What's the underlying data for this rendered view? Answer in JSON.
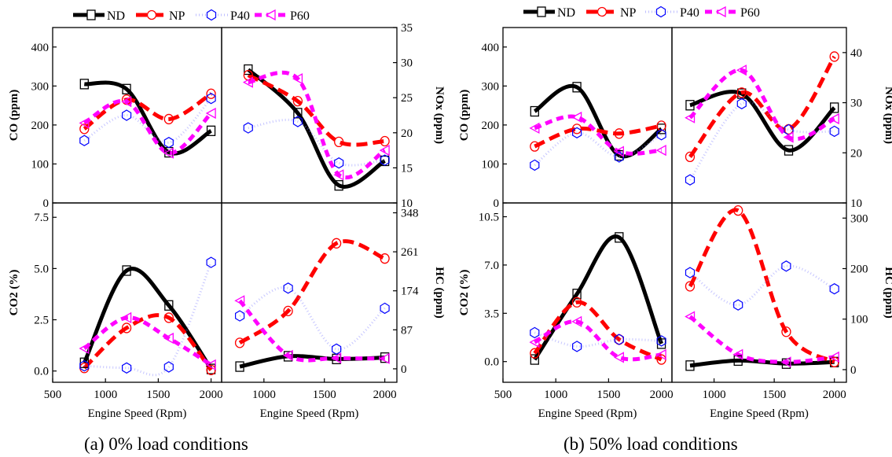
{
  "legend": [
    {
      "name": "ND",
      "color": "#000000",
      "marker": "square",
      "line": "solid"
    },
    {
      "name": "NP",
      "color": "#ff0000",
      "marker": "circle",
      "line": "dash"
    },
    {
      "name": "P40",
      "color": "#0000ff",
      "marker": "hexagon",
      "line": "dot"
    },
    {
      "name": "P60",
      "color": "#ff00ff",
      "marker": "triangle-left",
      "line": "dash"
    }
  ],
  "captions": [
    "(a) 0% load conditions",
    "(b) 50% load conditions"
  ],
  "chart_data": [
    {
      "type": "scatter",
      "group": "(a) 0% load conditions",
      "ylabel": "CO (ppm)",
      "y_axis_side": "left",
      "xlim": [
        500,
        2100
      ],
      "ylim": [
        0,
        450
      ],
      "xticks": [],
      "yticks": [
        0,
        100,
        200,
        300,
        400
      ],
      "series": [
        {
          "name": "ND",
          "x": [
            800,
            1200,
            1600,
            2000
          ],
          "y": [
            305,
            292,
            130,
            185
          ]
        },
        {
          "name": "NP",
          "x": [
            800,
            1200,
            1600,
            2000
          ],
          "y": [
            190,
            265,
            215,
            280
          ]
        },
        {
          "name": "P40",
          "x": [
            800,
            1200,
            1600,
            2000
          ],
          "y": [
            160,
            225,
            155,
            268
          ]
        },
        {
          "name": "P60",
          "x": [
            800,
            1200,
            1600,
            2000
          ],
          "y": [
            205,
            260,
            128,
            230
          ]
        }
      ]
    },
    {
      "type": "scatter",
      "group": "(a) 0% load conditions",
      "ylabel": "NOx (ppm)",
      "y_axis_side": "right",
      "xlim": [
        650,
        2100
      ],
      "ylim": [
        10,
        35
      ],
      "xticks": [],
      "yticks": [
        10,
        15,
        20,
        25,
        30,
        35
      ],
      "series": [
        {
          "name": "ND",
          "x": [
            870,
            1280,
            1620,
            2000
          ],
          "y": [
            29,
            22.8,
            12.5,
            16
          ]
        },
        {
          "name": "NP",
          "x": [
            870,
            1280,
            1620,
            2000
          ],
          "y": [
            28.2,
            24.5,
            18.7,
            18.8
          ]
        },
        {
          "name": "P40",
          "x": [
            870,
            1280,
            1620,
            2000
          ],
          "y": [
            20.7,
            21.6,
            15.7,
            16.1
          ]
        },
        {
          "name": "P60",
          "x": [
            870,
            1280,
            1620,
            2000
          ],
          "y": [
            27.2,
            27.7,
            14,
            17.5
          ]
        }
      ]
    },
    {
      "type": "scatter",
      "group": "(a) 0% load conditions",
      "ylabel": "CO2 (%)",
      "y_axis_side": "left",
      "xlim": [
        500,
        2100
      ],
      "ylim": [
        -0.55,
        8.2
      ],
      "xticks": [
        500,
        1000,
        1500,
        2000
      ],
      "yticks": [
        0.0,
        2.5,
        5.0,
        7.5
      ],
      "xlabel": "Engine Speed (Rpm)",
      "series": [
        {
          "name": "ND",
          "x": [
            800,
            1200,
            1600,
            2000
          ],
          "y": [
            0.4,
            4.9,
            3.2,
            0.1
          ]
        },
        {
          "name": "NP",
          "x": [
            800,
            1200,
            1600,
            2000
          ],
          "y": [
            0.15,
            2.1,
            2.6,
            0.05
          ]
        },
        {
          "name": "P40",
          "x": [
            800,
            1200,
            1600,
            2000
          ],
          "y": [
            0.25,
            0.15,
            0.2,
            5.3
          ]
        },
        {
          "name": "P60",
          "x": [
            800,
            1200,
            1600,
            2000
          ],
          "y": [
            1.1,
            2.6,
            1.6,
            0.3
          ]
        }
      ]
    },
    {
      "type": "scatter",
      "group": "(a) 0% load conditions",
      "ylabel": "HC (ppm)",
      "y_axis_side": "right",
      "xlim": [
        650,
        2100
      ],
      "ylim": [
        -30,
        370
      ],
      "xticks": [
        1000,
        1500,
        2000
      ],
      "yticks": [
        0,
        87,
        174,
        261,
        348
      ],
      "xlabel": "Engine Speed (Rpm)",
      "series": [
        {
          "name": "ND",
          "x": [
            800,
            1200,
            1600,
            2000
          ],
          "y": [
            5,
            28,
            22,
            25
          ]
        },
        {
          "name": "NP",
          "x": [
            800,
            1200,
            1600,
            2000
          ],
          "y": [
            58,
            129,
            280,
            246
          ]
        },
        {
          "name": "P40",
          "x": [
            800,
            1200,
            1600,
            2000
          ],
          "y": [
            118,
            180,
            44,
            135
          ]
        },
        {
          "name": "P60",
          "x": [
            800,
            1200,
            1600,
            2000
          ],
          "y": [
            152,
            30,
            24,
            23
          ]
        }
      ]
    },
    {
      "type": "scatter",
      "group": "(b) 50% load conditions",
      "ylabel": "CO (ppm)",
      "y_axis_side": "left",
      "xlim": [
        500,
        2100
      ],
      "ylim": [
        0,
        450
      ],
      "xticks": [],
      "yticks": [
        0,
        100,
        200,
        300,
        400
      ],
      "series": [
        {
          "name": "ND",
          "x": [
            800,
            1200,
            1600,
            2000
          ],
          "y": [
            235,
            297,
            122,
            190
          ]
        },
        {
          "name": "NP",
          "x": [
            800,
            1200,
            1600,
            2000
          ],
          "y": [
            145,
            190,
            178,
            198
          ]
        },
        {
          "name": "P40",
          "x": [
            800,
            1200,
            1600,
            2000
          ],
          "y": [
            97,
            180,
            118,
            175
          ]
        },
        {
          "name": "P60",
          "x": [
            800,
            1200,
            1600,
            2000
          ],
          "y": [
            192,
            220,
            132,
            135
          ]
        }
      ]
    },
    {
      "type": "scatter",
      "group": "(b) 50% load conditions",
      "ylabel": "NOx (ppm)",
      "y_axis_side": "right",
      "xlim": [
        650,
        2100
      ],
      "ylim": [
        10,
        45
      ],
      "xticks": [],
      "yticks": [
        10,
        20,
        30,
        40
      ],
      "series": [
        {
          "name": "ND",
          "x": [
            800,
            1230,
            1620,
            2000
          ],
          "y": [
            29.5,
            31.8,
            20.5,
            29
          ]
        },
        {
          "name": "NP",
          "x": [
            800,
            1230,
            1620,
            2000
          ],
          "y": [
            19.2,
            32,
            24.7,
            39.2
          ]
        },
        {
          "name": "P40",
          "x": [
            800,
            1230,
            1620,
            2000
          ],
          "y": [
            14.6,
            29.8,
            24.6,
            24.3
          ]
        },
        {
          "name": "P60",
          "x": [
            800,
            1230,
            1620,
            2000
          ],
          "y": [
            27,
            36.5,
            23.1,
            26.8
          ]
        }
      ]
    },
    {
      "type": "scatter",
      "group": "(b) 50% load conditions",
      "ylabel": "CO2 (%)",
      "y_axis_side": "left",
      "xlim": [
        500,
        2100
      ],
      "ylim": [
        -1.5,
        11.5
      ],
      "xticks": [
        500,
        1000,
        1500,
        2000
      ],
      "yticks": [
        0.0,
        3.5,
        7.0,
        10.5
      ],
      "xlabel": "Engine Speed (Rpm)",
      "series": [
        {
          "name": "ND",
          "x": [
            800,
            1200,
            1600,
            2000
          ],
          "y": [
            0.15,
            4.9,
            9.0,
            1.3
          ]
        },
        {
          "name": "NP",
          "x": [
            800,
            1200,
            1600,
            2000
          ],
          "y": [
            0.6,
            4.3,
            1.6,
            0.15
          ]
        },
        {
          "name": "P40",
          "x": [
            800,
            1200,
            1600,
            2000
          ],
          "y": [
            2.1,
            1.1,
            1.6,
            1.5
          ]
        },
        {
          "name": "P60",
          "x": [
            800,
            1200,
            1600,
            2000
          ],
          "y": [
            1.4,
            2.9,
            0.3,
            0.5
          ]
        }
      ]
    },
    {
      "type": "scatter",
      "group": "(b) 50% load conditions",
      "ylabel": "HC (ppm)",
      "y_axis_side": "right",
      "xlim": [
        650,
        2100
      ],
      "ylim": [
        -25,
        330
      ],
      "xticks": [
        1000,
        1500,
        2000
      ],
      "yticks": [
        0,
        100,
        200,
        300
      ],
      "xlabel": "Engine Speed (Rpm)",
      "series": [
        {
          "name": "ND",
          "x": [
            800,
            1200,
            1600,
            2000
          ],
          "y": [
            8,
            18,
            12,
            15
          ]
        },
        {
          "name": "NP",
          "x": [
            800,
            1200,
            1600,
            2000
          ],
          "y": [
            165,
            315,
            75,
            15
          ]
        },
        {
          "name": "P40",
          "x": [
            800,
            1200,
            1600,
            2000
          ],
          "y": [
            192,
            128,
            205,
            160
          ]
        },
        {
          "name": "P60",
          "x": [
            800,
            1200,
            1600,
            2000
          ],
          "y": [
            105,
            30,
            15,
            25
          ]
        }
      ]
    }
  ]
}
